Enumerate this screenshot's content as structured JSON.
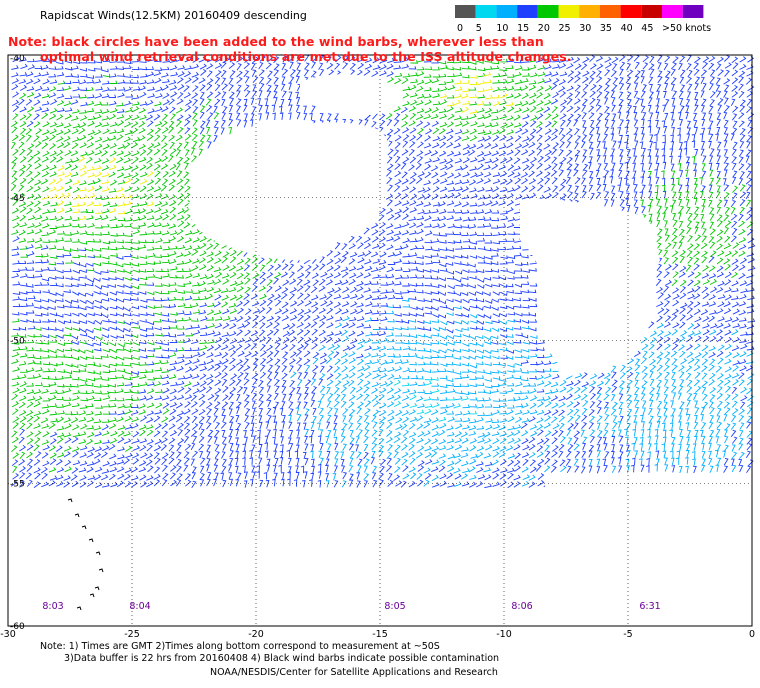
{
  "header": {
    "title": "Rapidscat Winds(12.5KM) 20160409 descending",
    "note_line1": "Note: black circles have been added to the wind barbs, wherever less than",
    "note_line2": "optimal wind retrieval conditions are met due to the ISS altitude changes."
  },
  "legend": {
    "labels": [
      "0",
      "5",
      "10",
      "15",
      "20",
      "25",
      "30",
      "35",
      "40",
      "45",
      ">50 knots"
    ],
    "colors": [
      "#555555",
      "#00d8f0",
      "#00b0ff",
      "#1f3fff",
      "#00c800",
      "#f0f000",
      "#ffb000",
      "#ff6000",
      "#ff0000",
      "#c80000",
      "#ff00ff",
      "#7000c0"
    ]
  },
  "axes": {
    "lat_labels": [
      "-40",
      "-45",
      "-50",
      "-55",
      "-60"
    ],
    "lon_labels": [
      "-30",
      "-25",
      "-20",
      "-15",
      "-10",
      "-5",
      "0"
    ]
  },
  "times": [
    "8:03",
    "8:04",
    "8:05",
    "8:06",
    "6:31"
  ],
  "footer": {
    "line1": "Note: 1) Times are GMT 2)Times along bottom correspond to measurement at ~50S",
    "line2": "3)Data buffer is 22 hrs from 20160408 4) Black wind barbs indicate possible contamination",
    "credit": "NOAA/NESDIS/Center for Satellite Applications and Research"
  }
}
